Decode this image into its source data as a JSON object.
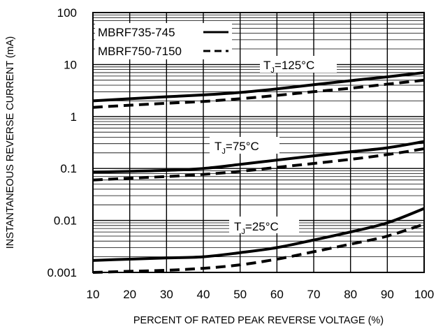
{
  "chart_data": {
    "type": "line",
    "title": "",
    "xlabel": "PERCENT OF RATED PEAK REVERSE VOLTAGE (%)",
    "ylabel": "INSTANTANEOUS REVERSE CURRENT (mA)",
    "xlim": [
      10,
      100
    ],
    "ylim": [
      0.001,
      100
    ],
    "yscale": "log",
    "grid": true,
    "x_ticks": [
      "10",
      "20",
      "30",
      "40",
      "50",
      "60",
      "70",
      "80",
      "90",
      "100"
    ],
    "y_ticks": [
      "0.001",
      "0.01",
      "0.1",
      "1",
      "10",
      "100"
    ],
    "legend": {
      "placement": "top-left",
      "entries": [
        {
          "label": "MBRF735-745",
          "style": "solid"
        },
        {
          "label": "MBRF750-7150",
          "style": "dashed"
        }
      ]
    },
    "annotations": [
      {
        "main": "T",
        "sub": "J",
        "rest": "=125°C"
      },
      {
        "main": "T",
        "sub": "J",
        "rest": "=75°C"
      },
      {
        "main": "T",
        "sub": "J",
        "rest": "=25°C"
      }
    ],
    "series": [
      {
        "name": "MBRF735-745",
        "group": "T_J=125°C",
        "style": "solid",
        "x": [
          10,
          20,
          30,
          40,
          50,
          60,
          70,
          80,
          90,
          100
        ],
        "y": [
          2.0,
          2.2,
          2.4,
          2.6,
          2.9,
          3.4,
          4.1,
          4.9,
          5.8,
          7.0
        ]
      },
      {
        "name": "MBRF750-7150",
        "group": "T_J=125°C",
        "style": "dashed",
        "x": [
          10,
          20,
          30,
          40,
          50,
          60,
          70,
          80,
          90,
          100
        ],
        "y": [
          1.5,
          1.65,
          1.8,
          1.95,
          2.2,
          2.55,
          3.0,
          3.5,
          4.2,
          5.0
        ]
      },
      {
        "name": "MBRF735-745",
        "group": "T_J=75°C",
        "style": "solid",
        "x": [
          10,
          20,
          30,
          40,
          50,
          60,
          70,
          80,
          90,
          100
        ],
        "y": [
          0.085,
          0.088,
          0.092,
          0.1,
          0.12,
          0.145,
          0.175,
          0.21,
          0.25,
          0.33
        ]
      },
      {
        "name": "MBRF750-7150",
        "group": "T_J=75°C",
        "style": "dashed",
        "x": [
          10,
          20,
          30,
          40,
          50,
          60,
          70,
          80,
          90,
          100
        ],
        "y": [
          0.06,
          0.065,
          0.07,
          0.077,
          0.088,
          0.105,
          0.125,
          0.15,
          0.185,
          0.24
        ]
      },
      {
        "name": "MBRF735-745",
        "group": "T_J=25°C",
        "style": "solid",
        "x": [
          10,
          20,
          30,
          40,
          50,
          60,
          70,
          80,
          90,
          100
        ],
        "y": [
          0.0017,
          0.0018,
          0.0019,
          0.002,
          0.0024,
          0.003,
          0.0042,
          0.006,
          0.009,
          0.017
        ]
      },
      {
        "name": "MBRF750-7150",
        "group": "T_J=25°C",
        "style": "dashed",
        "x": [
          10,
          20,
          30,
          40,
          50,
          60,
          70,
          80,
          90,
          100
        ],
        "y": [
          0.001,
          0.00105,
          0.0011,
          0.0012,
          0.0014,
          0.0018,
          0.0025,
          0.0035,
          0.005,
          0.0085
        ]
      }
    ]
  }
}
